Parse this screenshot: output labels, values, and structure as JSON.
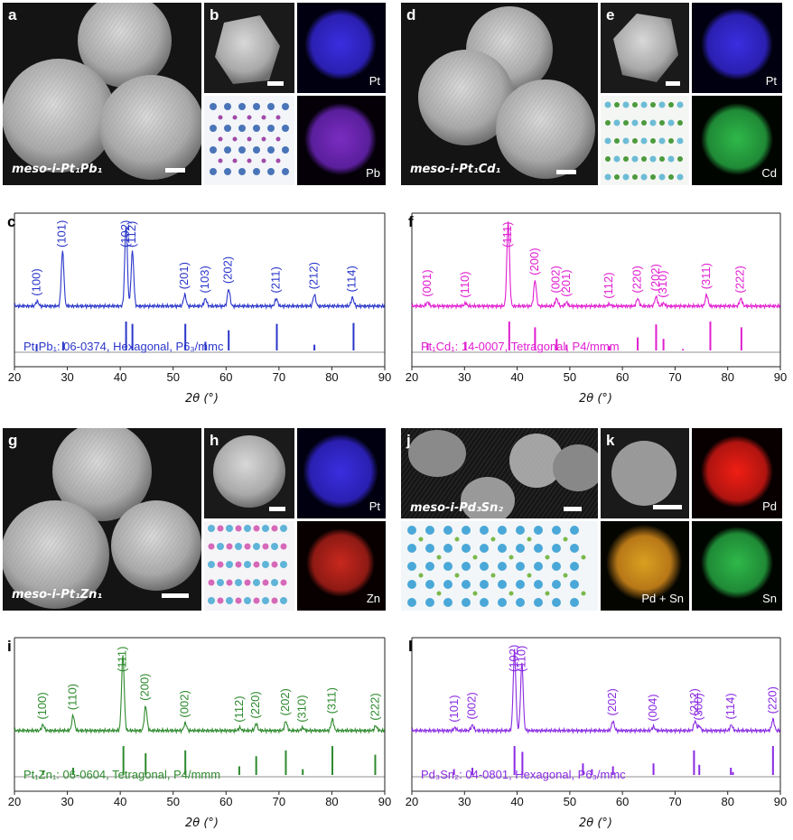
{
  "panels": [
    {
      "id": "a",
      "caption": "meso-i-Pt1Pb1"
    },
    {
      "id": "b",
      "elements": [
        "Pt",
        "Pb"
      ]
    },
    {
      "id": "d",
      "caption": "meso-i-Pt1Cd1"
    },
    {
      "id": "e",
      "elements": [
        "Pt",
        "Cd"
      ]
    },
    {
      "id": "g",
      "caption": "meso-i-Pt1Zn1"
    },
    {
      "id": "h",
      "elements": [
        "Pt",
        "Zn"
      ]
    },
    {
      "id": "j",
      "caption": "meso-i-Pd3Sn2"
    },
    {
      "id": "k",
      "elements": [
        "Pd",
        "Pd + Sn",
        "Sn"
      ]
    }
  ],
  "labels": {
    "a": "a",
    "b": "b",
    "c": "c",
    "d": "d",
    "e": "e",
    "f": "f",
    "g": "g",
    "h": "h",
    "i": "i",
    "j": "j",
    "k": "k",
    "l": "l"
  },
  "captions": {
    "a": "meso-i-Pt₁Pb₁",
    "d": "meso-i-Pt₁Cd₁",
    "g": "meso-i-Pt₁Zn₁",
    "j": "meso-i-Pd₃Sn₂"
  },
  "maps": {
    "b_top": "Pt",
    "b_bot": "Pb",
    "e_top": "Pt",
    "e_bot": "Cd",
    "h_top": "Pt",
    "h_bot": "Zn",
    "k_top": "Pd",
    "k_mid": "Pd + Sn",
    "k_bot": "Sn"
  },
  "xaxis_title": "2θ (°)",
  "chart_data": [
    {
      "id": "c",
      "type": "line",
      "color": "#2a36c9",
      "xlim": [
        20,
        90
      ],
      "xticks": [
        20,
        30,
        40,
        50,
        60,
        70,
        80,
        90
      ],
      "xlabel": "2θ (°)",
      "reference": "Pt₁Pb₁: 06-0374, Hexagonal, P6₃/mmc",
      "peaks": [
        {
          "label": "(100)",
          "x": 24.3,
          "h": 0.05
        },
        {
          "label": "(101)",
          "x": 29.1,
          "h": 0.58
        },
        {
          "label": "(102)",
          "x": 41.1,
          "h": 0.86
        },
        {
          "label": "(112)",
          "x": 42.3,
          "h": 0.58
        },
        {
          "label": "(201)",
          "x": 52.2,
          "h": 0.12
        },
        {
          "label": "(103)",
          "x": 56.1,
          "h": 0.08
        },
        {
          "label": "(202)",
          "x": 60.5,
          "h": 0.18
        },
        {
          "label": "(211)",
          "x": 69.5,
          "h": 0.08
        },
        {
          "label": "(212)",
          "x": 76.7,
          "h": 0.12
        },
        {
          "label": "(114)",
          "x": 83.9,
          "h": 0.09
        }
      ],
      "refs": [
        [
          24.2,
          0.22
        ],
        [
          29.2,
          0.3
        ],
        [
          41.1,
          1.0
        ],
        [
          42.3,
          0.92
        ],
        [
          52.3,
          0.92
        ],
        [
          56.1,
          0.3
        ],
        [
          60.5,
          0.7
        ],
        [
          69.6,
          0.92
        ],
        [
          76.7,
          0.2
        ],
        [
          84.1,
          0.95
        ]
      ]
    },
    {
      "id": "f",
      "type": "line",
      "color": "#e01ed0",
      "xlim": [
        20,
        90
      ],
      "xticks": [
        20,
        30,
        40,
        50,
        60,
        70,
        80,
        90
      ],
      "xlabel": "2θ (°)",
      "reference": "Pt₁Cd₁: 14-0007, Tetragonal, P4/mmm",
      "peaks": [
        {
          "label": "(001)",
          "x": 23.0,
          "h": 0.04
        },
        {
          "label": "(110)",
          "x": 30.2,
          "h": 0.03
        },
        {
          "label": "(111)",
          "x": 38.3,
          "h": 0.9
        },
        {
          "label": "(200)",
          "x": 43.4,
          "h": 0.27
        },
        {
          "label": "(002)",
          "x": 47.5,
          "h": 0.08
        },
        {
          "label": "(201)",
          "x": 49.4,
          "h": 0.04
        },
        {
          "label": "(112)",
          "x": 57.5,
          "h": 0.02
        },
        {
          "label": "(220)",
          "x": 62.9,
          "h": 0.08
        },
        {
          "label": "(202)",
          "x": 66.4,
          "h": 0.1
        },
        {
          "label": "(310)",
          "x": 67.8,
          "h": 0.03
        },
        {
          "label": "(311)",
          "x": 76.0,
          "h": 0.12
        },
        {
          "label": "(222)",
          "x": 82.5,
          "h": 0.08
        }
      ],
      "refs": [
        [
          23.0,
          0.25
        ],
        [
          30.2,
          0.3
        ],
        [
          38.5,
          1.0
        ],
        [
          43.4,
          0.8
        ],
        [
          47.5,
          0.4
        ],
        [
          49.4,
          0.2
        ],
        [
          57.5,
          0.15
        ],
        [
          62.9,
          0.45
        ],
        [
          66.4,
          0.9
        ],
        [
          67.8,
          0.4
        ],
        [
          71.5,
          0.05
        ],
        [
          76.7,
          1.0
        ],
        [
          82.6,
          0.8
        ]
      ]
    },
    {
      "id": "i",
      "type": "line",
      "color": "#2e8a2e",
      "xlim": [
        20,
        90
      ],
      "xticks": [
        20,
        30,
        40,
        50,
        60,
        70,
        80,
        90
      ],
      "xlabel": "2θ (°)",
      "reference": "Pt₁Zn₁: 06-0604, Tetragonal, P4/mmm",
      "peaks": [
        {
          "label": "(100)",
          "x": 25.4,
          "h": 0.06
        },
        {
          "label": "(110)",
          "x": 31.1,
          "h": 0.16
        },
        {
          "label": "(111)",
          "x": 40.5,
          "h": 0.8
        },
        {
          "label": "(200)",
          "x": 44.8,
          "h": 0.26
        },
        {
          "label": "(002)",
          "x": 52.3,
          "h": 0.08
        },
        {
          "label": "(112)",
          "x": 62.6,
          "h": 0.03
        },
        {
          "label": "(220)",
          "x": 65.7,
          "h": 0.07
        },
        {
          "label": "(202)",
          "x": 71.3,
          "h": 0.1
        },
        {
          "label": "(310)",
          "x": 74.5,
          "h": 0.03
        },
        {
          "label": "(311)",
          "x": 80.1,
          "h": 0.12
        },
        {
          "label": "(222)",
          "x": 88.3,
          "h": 0.05
        }
      ],
      "refs": [
        [
          25.4,
          0.15
        ],
        [
          31.1,
          0.25
        ],
        [
          40.6,
          1.0
        ],
        [
          44.8,
          0.75
        ],
        [
          52.3,
          0.85
        ],
        [
          62.5,
          0.3
        ],
        [
          65.7,
          0.65
        ],
        [
          71.3,
          0.85
        ],
        [
          74.5,
          0.2
        ],
        [
          80.1,
          1.0
        ],
        [
          88.2,
          0.7
        ]
      ]
    },
    {
      "id": "l",
      "type": "line",
      "color": "#8a2be2",
      "xlim": [
        20,
        90
      ],
      "xticks": [
        20,
        30,
        40,
        50,
        60,
        70,
        80,
        90
      ],
      "xlabel": "2θ (°)",
      "reference": "Pd₃Sn₂: 04-0801, Hexagonal, P6₃/mmc",
      "peaks": [
        {
          "label": "(101)",
          "x": 28.2,
          "h": 0.03
        },
        {
          "label": "(002)",
          "x": 31.5,
          "h": 0.06
        },
        {
          "label": "(102)",
          "x": 39.5,
          "h": 0.85
        },
        {
          "label": "(110)",
          "x": 40.9,
          "h": 0.72
        },
        {
          "label": "(202)",
          "x": 58.2,
          "h": 0.1
        },
        {
          "label": "(004)",
          "x": 65.9,
          "h": 0.04
        },
        {
          "label": "(212)",
          "x": 73.8,
          "h": 0.1
        },
        {
          "label": "(300)",
          "x": 74.6,
          "h": 0.05
        },
        {
          "label": "(114)",
          "x": 80.7,
          "h": 0.06
        },
        {
          "label": "(220)",
          "x": 88.6,
          "h": 0.12
        }
      ],
      "refs": [
        [
          28.0,
          0.2
        ],
        [
          31.5,
          0.25
        ],
        [
          39.5,
          1.0
        ],
        [
          41.0,
          0.8
        ],
        [
          52.5,
          0.4
        ],
        [
          54.2,
          0.2
        ],
        [
          58.2,
          0.3
        ],
        [
          65.9,
          0.4
        ],
        [
          73.6,
          0.85
        ],
        [
          74.6,
          0.35
        ],
        [
          80.6,
          0.25
        ],
        [
          81.0,
          0.1
        ],
        [
          88.6,
          1.0
        ]
      ]
    }
  ]
}
